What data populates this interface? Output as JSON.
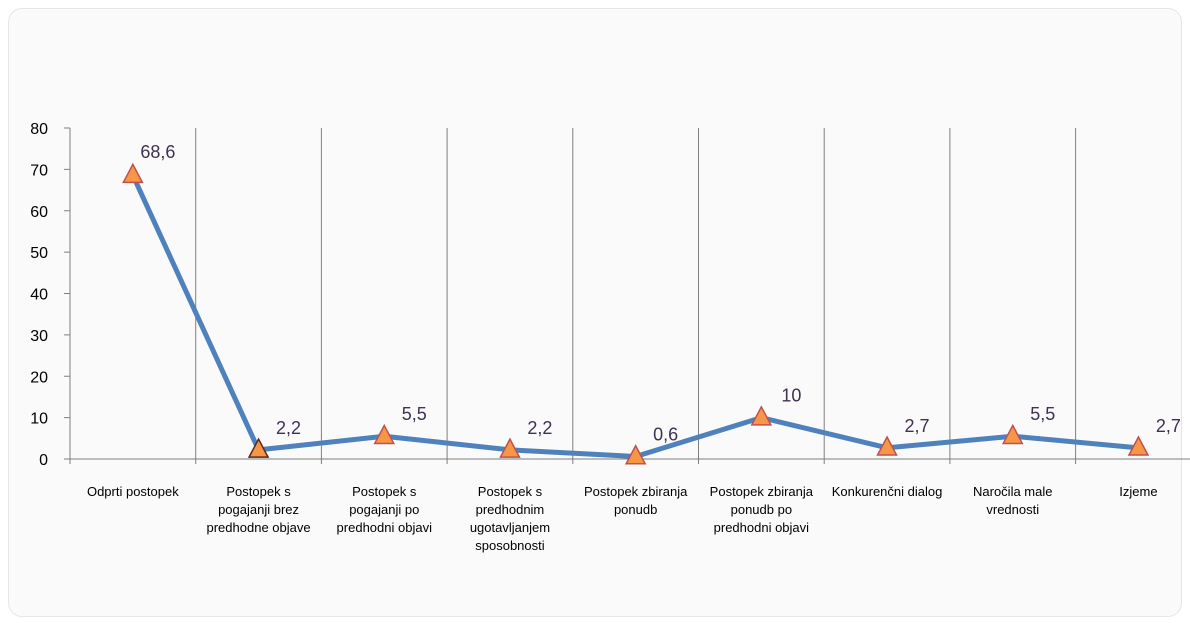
{
  "chart_data": {
    "type": "line",
    "title": "",
    "xlabel": "",
    "ylabel": "",
    "ylim": [
      0,
      80
    ],
    "yticks": [
      0,
      10,
      20,
      30,
      40,
      50,
      60,
      70,
      80
    ],
    "grid": "vertical",
    "legend": "none",
    "categories": [
      "Odprti postopek",
      "Postopek s pogajanji brez predhodne objave",
      "Postopek s pogajanji po predhodni objavi",
      "Postopek s predhodnim ugotavljanjem sposobnosti",
      "Postopek zbiranja ponudb",
      "Postopek zbiranja ponudb po predhodni objavi",
      "Konkurenčni dialog",
      "Naročila male vrednosti",
      "Izjeme"
    ],
    "category_lines": [
      [
        "Odprti postopek"
      ],
      [
        "Postopek s",
        "pogajanji brez",
        "predhodne objave"
      ],
      [
        "Postopek s",
        "pogajanji po",
        "predhodni objavi"
      ],
      [
        "Postopek s",
        "predhodnim",
        "ugotavljanjem",
        "sposobnosti"
      ],
      [
        "Postopek zbiranja",
        "ponudb"
      ],
      [
        "Postopek zbiranja",
        "ponudb po",
        "predhodni objavi"
      ],
      [
        "Konkurenčni dialog"
      ],
      [
        "Naročila male",
        "vrednosti"
      ],
      [
        "Izjeme"
      ]
    ],
    "series": [
      {
        "values": [
          68.6,
          2.2,
          5.5,
          2.2,
          0.6,
          10,
          2.7,
          5.5,
          2.7
        ],
        "data_labels": [
          "68,6",
          "2,2",
          "5,5",
          "2,2",
          "0,6",
          "10",
          "2,7",
          "5,5",
          "2,7"
        ],
        "line_color": "#4f81bd",
        "marker": "triangle",
        "marker_fill": "#f79646",
        "marker_stroke": "#c0504d"
      }
    ],
    "colors": {
      "axis": "#7f7f7f",
      "grid": "#7f7f7f",
      "label": "#403152"
    }
  }
}
